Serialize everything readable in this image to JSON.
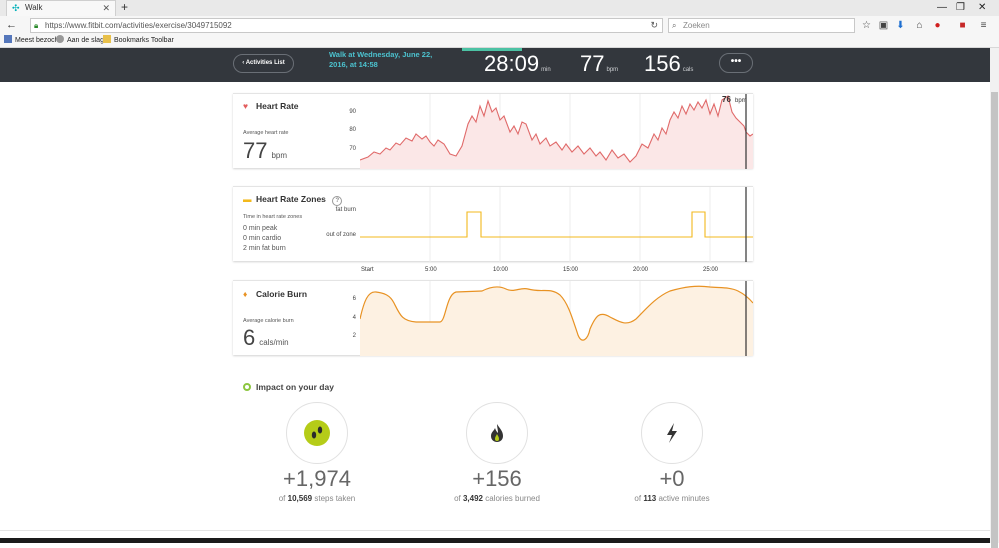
{
  "browser": {
    "tab_title": "Walk",
    "url": "https://www.fitbit.com/activities/exercise/3049715092",
    "search_placeholder": "Zoeken",
    "bookmarks": [
      "Meest bezocht",
      "Aan de slag",
      "Bookmarks Toolbar"
    ]
  },
  "header": {
    "back_label": "Activities List",
    "walk_info": "Walk at Wednesday, June 22, 2016, at 14:58",
    "duration": "28:09",
    "duration_unit": "min",
    "heart": "77",
    "heart_unit": "bpm",
    "cals": "156",
    "cals_unit": "cals",
    "more_label": "•••"
  },
  "heart_rate": {
    "title": "Heart Rate",
    "sub": "Average heart rate",
    "value": "77",
    "unit": "bpm",
    "y_ticks": [
      "90",
      "80",
      "70"
    ],
    "current_value": "76",
    "current_unit": "bpm"
  },
  "zones": {
    "title": "Heart Rate Zones",
    "help": "?",
    "sub": "Time in heart rate zones",
    "lines": [
      "0 min peak",
      "0 min cardio",
      "2 min fat burn"
    ],
    "y_labels": [
      "fat burn",
      "out of zone"
    ]
  },
  "time_axis": [
    "Start",
    "5:00",
    "10:00",
    "15:00",
    "20:00",
    "25:00"
  ],
  "calorie": {
    "title": "Calorie Burn",
    "sub": "Average calorie burn",
    "value": "6",
    "unit": "cals/min",
    "y_ticks": [
      "6",
      "4",
      "2"
    ]
  },
  "impact": {
    "title": "Impact on your day",
    "items": [
      {
        "num": "+1,974",
        "of": "of",
        "total": "10,569",
        "label": "steps taken"
      },
      {
        "num": "+156",
        "of": "of",
        "total": "3,492",
        "label": "calories burned"
      },
      {
        "num": "+0",
        "of": "of",
        "total": "113",
        "label": "active minutes"
      }
    ]
  },
  "colors": {
    "header_bg": "#33373d",
    "accent_teal": "#4cc2cf",
    "heart_red": "#e06a6a",
    "zone_yellow": "#f3b91c",
    "calorie_orange": "#e89223",
    "steps_green": "#b5cc18"
  }
}
